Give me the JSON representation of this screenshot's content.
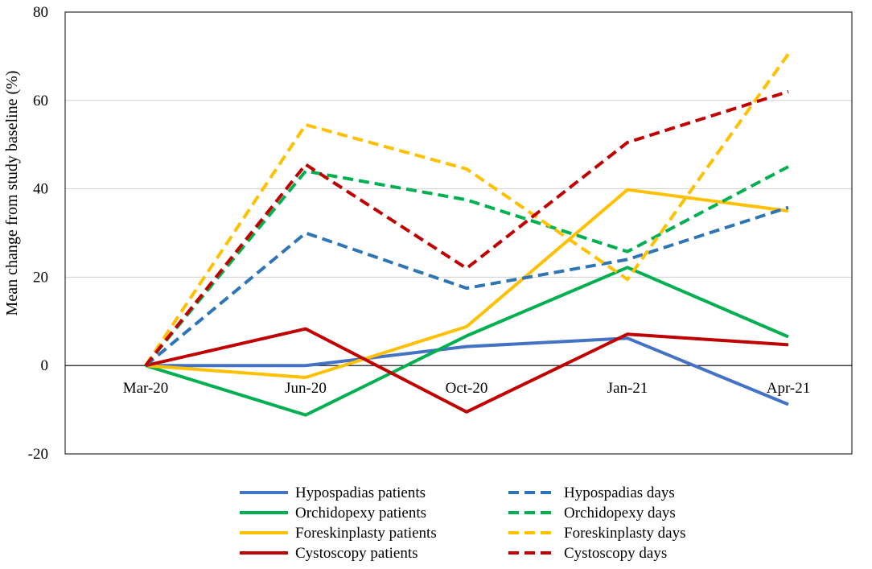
{
  "chart_data": {
    "type": "line",
    "title": "",
    "xlabel": "",
    "ylabel": "Mean change from study baseline (%)",
    "ylim": [
      -20,
      80
    ],
    "yticks": [
      -20,
      0,
      20,
      40,
      60,
      80
    ],
    "grid": true,
    "legend_position": "bottom",
    "categories": [
      "Mar-20",
      "Jun-20",
      "Oct-20",
      "Jan-21",
      "Apr-21"
    ],
    "series": [
      {
        "name": "Hypospadias patients",
        "color": "#4472C4",
        "style": "solid",
        "values": [
          0,
          0,
          4.3,
          6.2,
          -8.8
        ]
      },
      {
        "name": "Hypospadias days",
        "color": "#2E75B6",
        "style": "dashed",
        "values": [
          0,
          30,
          17.5,
          24,
          35.8
        ]
      },
      {
        "name": "Orchidopexy patients",
        "color": "#00B050",
        "style": "solid",
        "values": [
          0,
          -11.2,
          6.7,
          22.2,
          6.5
        ]
      },
      {
        "name": "Orchidopexy days",
        "color": "#00B050",
        "style": "dashed",
        "values": [
          0,
          44,
          37.5,
          25.8,
          45
        ]
      },
      {
        "name": "Foreskinplasty patients",
        "color": "#FFC000",
        "style": "solid",
        "values": [
          0,
          -2.7,
          8.8,
          39.8,
          35
        ]
      },
      {
        "name": "Foreskinplasty days",
        "color": "#FFC000",
        "style": "dashed",
        "values": [
          0,
          54.5,
          44.5,
          19.5,
          70.5
        ]
      },
      {
        "name": "Cystoscopy patients",
        "color": "#C00000",
        "style": "solid",
        "values": [
          0,
          8.3,
          -10.5,
          7.1,
          4.7
        ]
      },
      {
        "name": "Cystoscopy days",
        "color": "#C00000",
        "style": "dashed",
        "values": [
          0,
          45.5,
          22,
          50.5,
          62
        ]
      }
    ]
  }
}
